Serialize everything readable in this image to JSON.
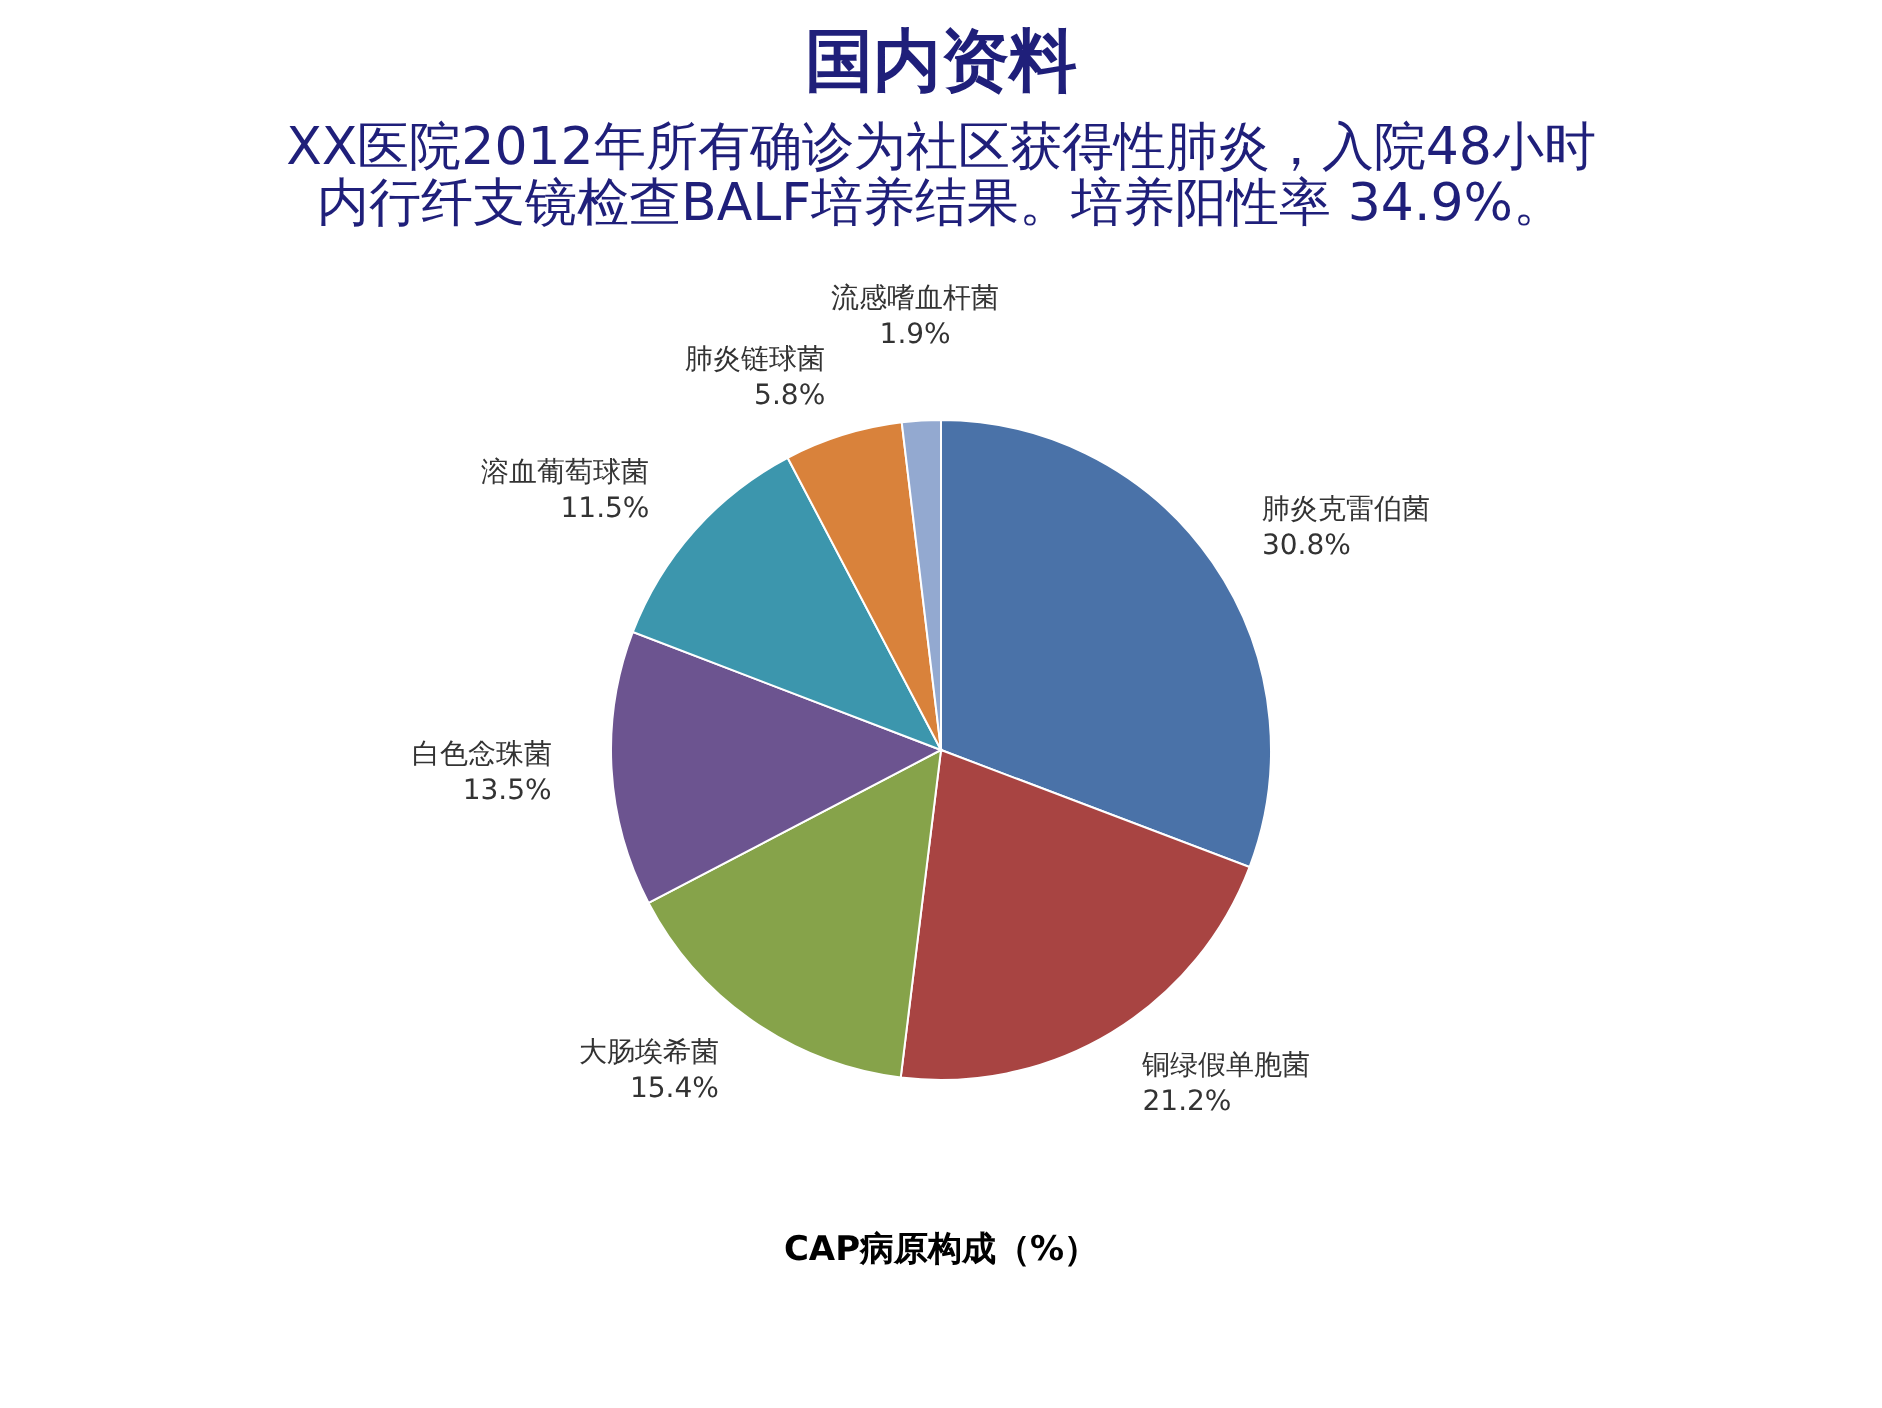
{
  "chart_data": {
    "type": "pie",
    "title": "国内资料",
    "subtitle": [
      "XX医院2012年所有确诊为社区获得性肺炎，入院48小时",
      "内行纤支镜检查BALF培养结果。培养阳性率 34.9%。"
    ],
    "categories": [
      "肺炎克雷伯菌",
      "铜绿假单胞菌",
      "大肠埃希菌",
      "白色念珠菌",
      "溶血葡萄球菌",
      "肺炎链球菌",
      "流感嗜血杆菌"
    ],
    "values": [
      30.8,
      21.2,
      15.4,
      13.5,
      11.5,
      5.8,
      1.9
    ],
    "value_labels": [
      "30.8%",
      "21.2%",
      "15.4%",
      "13.5%",
      "11.5%",
      "5.8%",
      "1.9%"
    ],
    "colors": [
      "#4a72a8",
      "#a84442",
      "#86a34a",
      "#6c5490",
      "#3c96ad",
      "#d9823b",
      "#93a9d0"
    ],
    "annotations": [
      "CAP病原构成（%）"
    ],
    "legend": false
  }
}
